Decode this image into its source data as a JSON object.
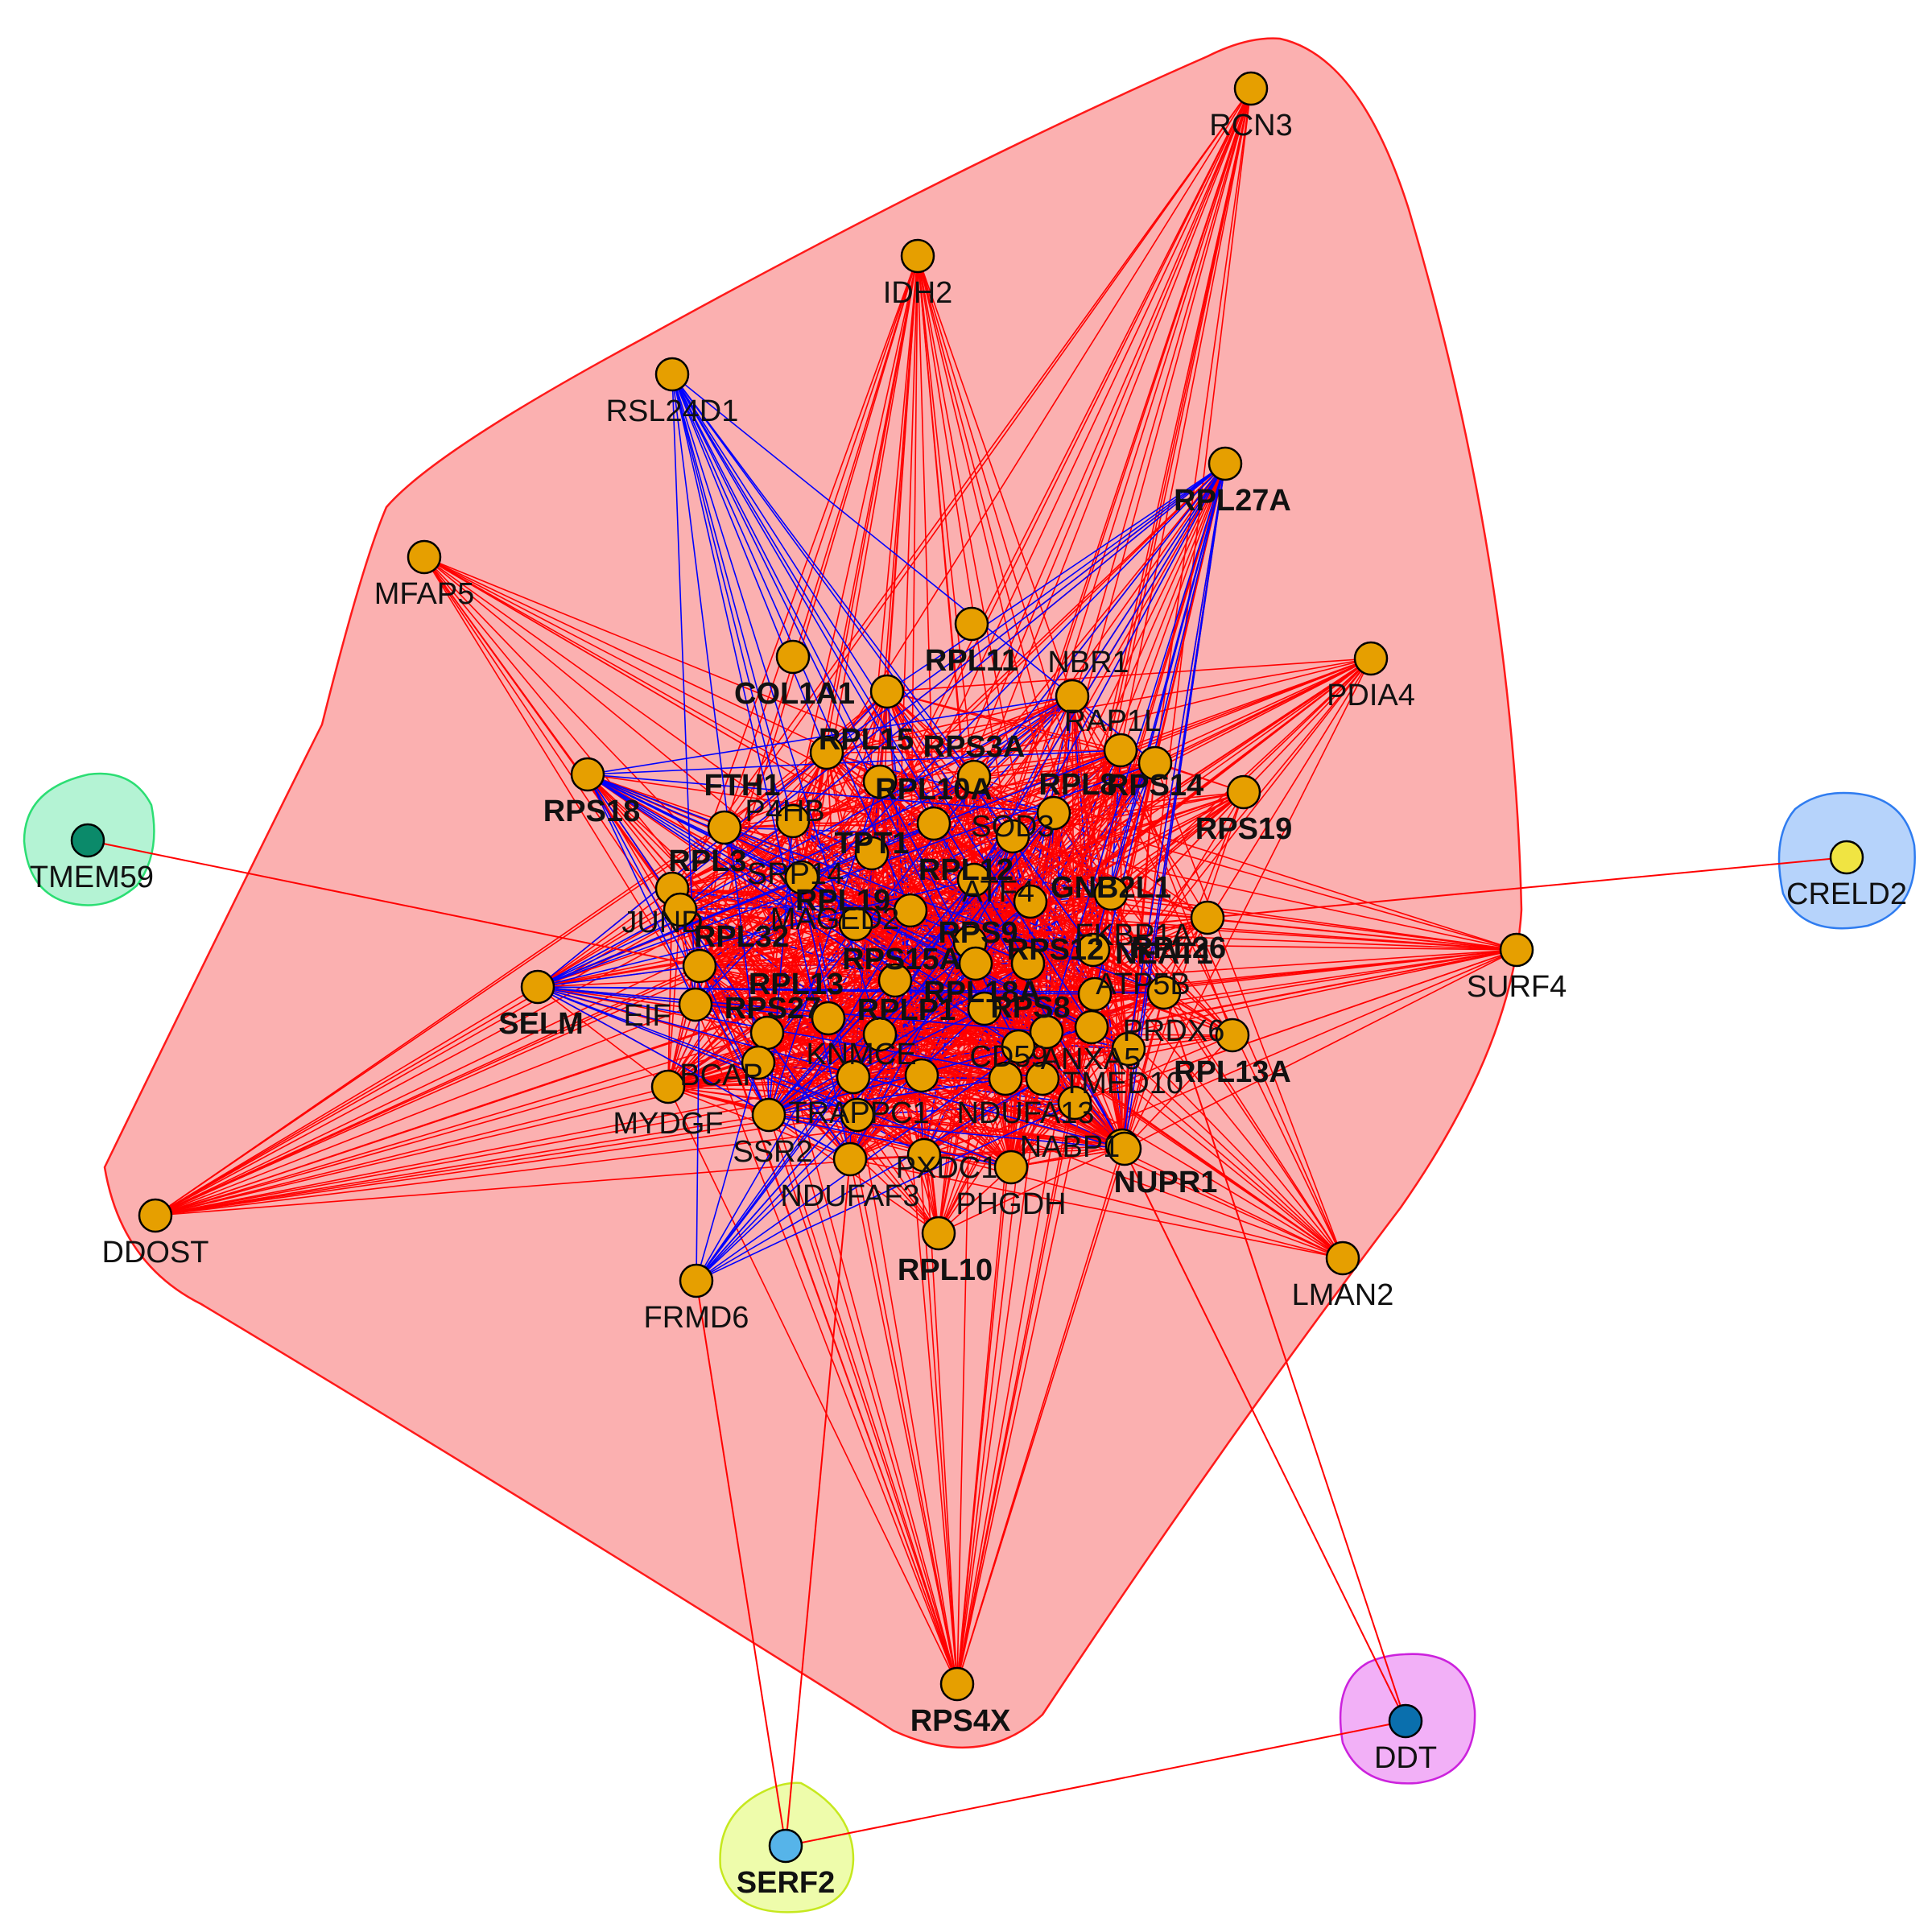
{
  "colors": {
    "positive_edge": "#ff0000",
    "negative_edge": "#0000ff",
    "node_default": "#e69f00",
    "node_stroke": "#000000",
    "cluster_main_fill": "#fbb0b0",
    "cluster_main_stroke": "#ff0000"
  },
  "clusters": [
    {
      "id": "main",
      "fill": "#fbb0b0",
      "stroke": "#ff1a1a"
    },
    {
      "id": "TMEM59",
      "fill": "#b4f3d4",
      "stroke": "#2bde73"
    },
    {
      "id": "CRELD2",
      "fill": "#b6d3fb",
      "stroke": "#2f7cf0"
    },
    {
      "id": "DDT",
      "fill": "#f2b0f7",
      "stroke": "#cc22dd"
    },
    {
      "id": "SERF2",
      "fill": "#eefcab",
      "stroke": "#c6e81e"
    }
  ],
  "nodes": [
    {
      "id": "RCN3",
      "label": "RCN3",
      "bold": false
    },
    {
      "id": "IDH2",
      "label": "IDH2",
      "bold": false
    },
    {
      "id": "RSL24D1",
      "label": "RSL24D1",
      "bold": false
    },
    {
      "id": "RPL27A",
      "label": "RPL27A",
      "bold": true
    },
    {
      "id": "MFAP5",
      "label": "MFAP5",
      "bold": false
    },
    {
      "id": "PDIA4",
      "label": "PDIA4",
      "bold": false
    },
    {
      "id": "RPL11",
      "label": "RPL11",
      "bold": true
    },
    {
      "id": "COL1A1",
      "label": "COL1A1",
      "bold": true
    },
    {
      "id": "RPS18",
      "label": "RPS18",
      "bold": true
    },
    {
      "id": "RPS19",
      "label": "RPS19",
      "bold": true
    },
    {
      "id": "RPS14",
      "label": "RPS14",
      "bold": true
    },
    {
      "id": "SURF4",
      "label": "SURF4",
      "bold": false
    },
    {
      "id": "SELM",
      "label": "SELM",
      "bold": true
    },
    {
      "id": "NEAT1",
      "label": "NEAT1",
      "bold": true
    },
    {
      "id": "RPL26",
      "label": "RPL26",
      "bold": true
    },
    {
      "id": "RPL13A",
      "label": "RPL13A",
      "bold": true
    },
    {
      "id": "DDOST",
      "label": "DDOST",
      "bold": false
    },
    {
      "id": "MYDGF",
      "label": "MYDGF",
      "bold": false
    },
    {
      "id": "FRMD6",
      "label": "FRMD6",
      "bold": false
    },
    {
      "id": "LMAN2",
      "label": "LMAN2",
      "bold": false
    },
    {
      "id": "NUPR1",
      "label": "NUPR1",
      "bold": true
    },
    {
      "id": "RPL10",
      "label": "RPL10",
      "bold": true
    },
    {
      "id": "PHGDH",
      "label": "PHGDH",
      "bold": false
    },
    {
      "id": "NDUFAF3",
      "label": "NDUFAF3",
      "bold": false
    },
    {
      "id": "SSR2",
      "label": "SSR2",
      "bold": false
    },
    {
      "id": "RPS4X",
      "label": "RPS4X",
      "bold": true
    },
    {
      "id": "FTH1",
      "label": "FTH1",
      "bold": true
    },
    {
      "id": "RPL10A",
      "label": "RPL10A",
      "bold": true
    },
    {
      "id": "RPS3A",
      "label": "RPS3A",
      "bold": true
    },
    {
      "id": "TPT1",
      "label": "TPT1",
      "bold": true
    },
    {
      "id": "RPL12",
      "label": "RPL12",
      "bold": true
    },
    {
      "id": "RPL19",
      "label": "RPL19",
      "bold": true
    },
    {
      "id": "RPS9",
      "label": "RPS9",
      "bold": true
    },
    {
      "id": "RPS12",
      "label": "RPS12",
      "bold": true
    },
    {
      "id": "GNB2L1",
      "label": "GNB2L1",
      "bold": true
    },
    {
      "id": "RPS15A",
      "label": "RPS15A",
      "bold": true
    },
    {
      "id": "RPL18A",
      "label": "RPL18A",
      "bold": true
    },
    {
      "id": "RPL32",
      "label": "RPL32",
      "bold": true
    },
    {
      "id": "RPS27",
      "label": "RPS27",
      "bold": true
    },
    {
      "id": "RPLP1",
      "label": "RPLP1",
      "bold": true
    },
    {
      "id": "RPS8",
      "label": "RPS8",
      "bold": true
    },
    {
      "id": "RPL13",
      "label": "RPL13",
      "bold": true
    },
    {
      "id": "RPL8",
      "label": "RPL8",
      "bold": true
    },
    {
      "id": "RPL15",
      "label": "RPL15",
      "bold": true
    },
    {
      "id": "RPL3",
      "label": "RPL3",
      "bold": true
    },
    {
      "id": "SOD3",
      "label": "SOD3",
      "bold": false
    },
    {
      "id": "PRDX6",
      "label": "PRDX6",
      "bold": false
    },
    {
      "id": "TMED10",
      "label": "TMED10",
      "bold": false
    },
    {
      "id": "NABP1",
      "label": "NABP1",
      "bold": false
    },
    {
      "id": "PXDC1",
      "label": "PXDC1",
      "bold": false
    },
    {
      "id": "BCAP",
      "label": "BCAP",
      "bold": false
    },
    {
      "id": "JUND",
      "label": "JUND",
      "bold": false
    },
    {
      "id": "MAGED2",
      "label": "MAGED2",
      "bold": false
    },
    {
      "id": "EIF",
      "label": "EIF",
      "bold": false
    },
    {
      "id": "ATF4",
      "label": "ATF4",
      "bold": false
    },
    {
      "id": "SRP14",
      "label": "SRP14",
      "bold": false
    },
    {
      "id": "P4HB",
      "label": "P4HB",
      "bold": false
    },
    {
      "id": "CD59",
      "label": "CD59",
      "bold": false
    },
    {
      "id": "NDUFA13",
      "label": "NDUFA13",
      "bold": false
    },
    {
      "id": "TRAPPC1",
      "label": "TRAPPC1",
      "bold": false
    },
    {
      "id": "ANXA5",
      "label": "ANXA5",
      "bold": false
    },
    {
      "id": "ATP5B",
      "label": "ATP5B",
      "bold": false
    },
    {
      "id": "FKBP1A",
      "label": "FKBP1A",
      "bold": false
    },
    {
      "id": "NBR1",
      "label": "NBR1",
      "bold": false
    },
    {
      "id": "RAP1L",
      "label": "RAP1L",
      "bold": false
    },
    {
      "id": "KNMCE",
      "label": "KNMCE",
      "bold": false
    },
    {
      "id": "N1",
      "label": "",
      "bold": false
    },
    {
      "id": "N2",
      "label": "",
      "bold": false
    },
    {
      "id": "N3",
      "label": "",
      "bold": false
    },
    {
      "id": "N4",
      "label": "",
      "bold": false
    },
    {
      "id": "N5",
      "label": "",
      "bold": false
    },
    {
      "id": "TMEM59",
      "label": "TMEM59",
      "bold": false,
      "color": "#0b8a6a"
    },
    {
      "id": "CRELD2",
      "label": "CRELD2",
      "bold": false,
      "color": "#f0e442"
    },
    {
      "id": "DDT",
      "label": "DDT",
      "bold": false,
      "color": "#0a6fad"
    },
    {
      "id": "SERF2",
      "label": "SERF2",
      "bold": true,
      "color": "#56b4e9"
    }
  ],
  "edges_red_spokes": [
    "RCN3",
    "IDH2",
    "RPL27A",
    "MFAP5",
    "PDIA4",
    "SURF4",
    "SELM",
    "DDOST",
    "MYDGF",
    "LMAN2",
    "NUPR1",
    "RPL10",
    "PHGDH",
    "NDUFAF3",
    "RPS4X",
    "RPS18",
    "RPS19",
    "RPL13A",
    "NEAT1",
    "RPL26"
  ],
  "edges_blue_spokes": [
    "RSL24D1",
    "FRMD6",
    "RPS18",
    "SELM",
    "RPL27A",
    "SSR2"
  ],
  "edges_external": [
    [
      "TMEM59",
      "RPL32"
    ],
    [
      "CRELD2",
      "RPL26"
    ],
    [
      "DDT",
      "NUPR1"
    ],
    [
      "DDT",
      "NEAT1"
    ],
    [
      "DDT",
      "SERF2"
    ],
    [
      "SERF2",
      "FRMD6"
    ],
    [
      "SERF2",
      "NDUFAF3"
    ]
  ]
}
